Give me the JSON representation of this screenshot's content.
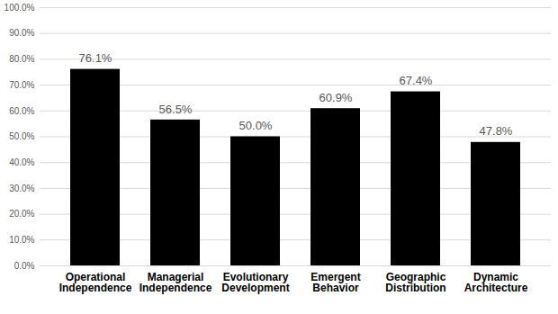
{
  "chart_data": {
    "type": "bar",
    "categories": [
      "Operational\nIndependence",
      "Managerial\nIndependence",
      "Evolutionary\nDevelopment",
      "Emergent\nBehavior",
      "Geographic\nDistribution",
      "Dynamic\nArchitecture"
    ],
    "values": [
      76.1,
      56.5,
      50.0,
      60.9,
      67.4,
      47.8
    ],
    "value_labels": [
      "76.1%",
      "56.5%",
      "50.0%",
      "60.9%",
      "67.4%",
      "47.8%"
    ],
    "color": "#000000",
    "ylim": [
      0,
      100
    ],
    "yticks": [
      {
        "value": 0,
        "label": "0.0%"
      },
      {
        "value": 10,
        "label": "10.0%"
      },
      {
        "value": 20,
        "label": "20.0%"
      },
      {
        "value": 30,
        "label": "30.0%"
      },
      {
        "value": 40,
        "label": "40.0%"
      },
      {
        "value": 50,
        "label": "50.0%"
      },
      {
        "value": 60,
        "label": "60.0%"
      },
      {
        "value": 70,
        "label": "70.0%"
      },
      {
        "value": 80,
        "label": "80.0%"
      },
      {
        "value": 90,
        "label": "90.0%"
      },
      {
        "value": 100,
        "label": "100.0%"
      }
    ],
    "grid": true,
    "data_labels": true
  }
}
